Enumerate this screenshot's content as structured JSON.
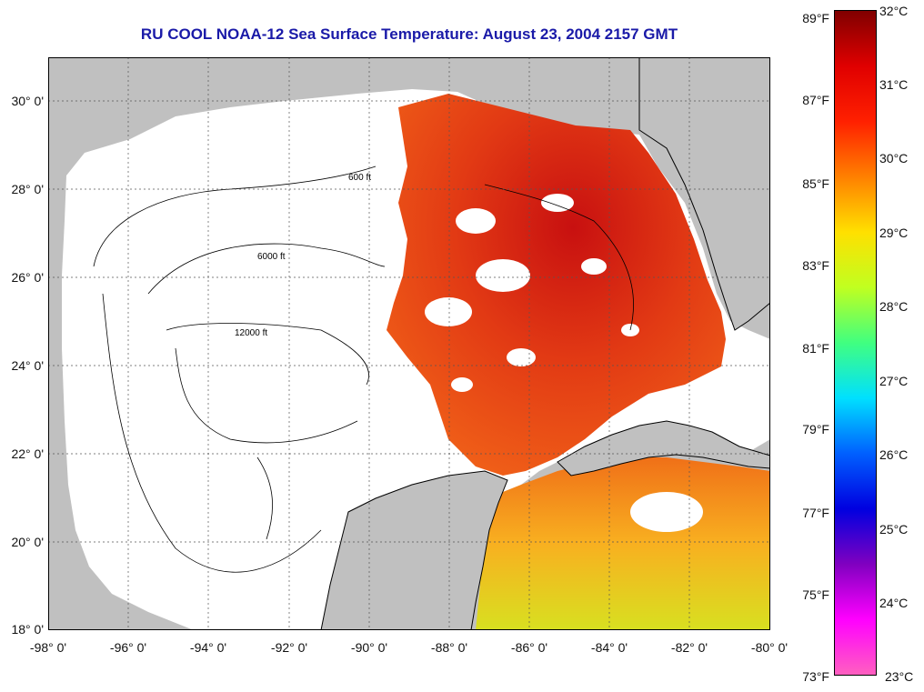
{
  "title": "RU COOL  NOAA-12  Sea Surface Temperature:  August 23, 2004 2157 GMT",
  "map": {
    "lon_range": [
      -98,
      -80
    ],
    "lat_range": [
      18,
      31
    ],
    "grid": "dotted",
    "lat_labels": [
      "30° 0'",
      "28° 0'",
      "26° 0'",
      "24° 0'",
      "22° 0'",
      "20° 0'",
      "18° 0'"
    ],
    "lon_labels": [
      "-98° 0'",
      "-96° 0'",
      "-94° 0'",
      "-92° 0'",
      "-90° 0'",
      "-88° 0'",
      "-86° 0'",
      "-84° 0'",
      "-82° 0'",
      "-80° 0'"
    ],
    "contour_labels": [
      "600 ft",
      "6000 ft",
      "12000 ft"
    ],
    "colors": {
      "land": "#c0c0c0",
      "no_data": "#ffffff",
      "ocean_warm": "#e8401a"
    }
  },
  "colorbar": {
    "fahrenheit_labels": [
      "89°F",
      "87°F",
      "85°F",
      "83°F",
      "81°F",
      "79°F",
      "77°F",
      "75°F",
      "73°F"
    ],
    "celsius_labels": [
      "32°C",
      "31°C",
      "30°C",
      "29°C",
      "28°C",
      "27°C",
      "26°C",
      "25°C",
      "24°C",
      "23°C"
    ],
    "range_celsius": [
      23,
      32
    ],
    "range_fahrenheit": [
      73,
      89
    ],
    "colors_top_to_bottom": [
      "#800000",
      "#e00000",
      "#ff2000",
      "#ff8000",
      "#ffe000",
      "#c0ff20",
      "#40ff80",
      "#00e0ff",
      "#0060ff",
      "#0000e0",
      "#8000c0",
      "#ff00ff",
      "#ff60c0"
    ]
  }
}
